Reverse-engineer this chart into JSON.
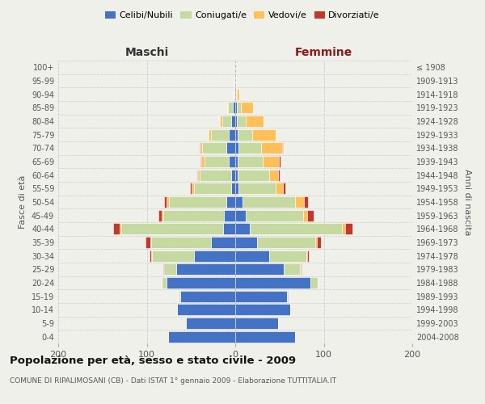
{
  "age_groups": [
    "0-4",
    "5-9",
    "10-14",
    "15-19",
    "20-24",
    "25-29",
    "30-34",
    "35-39",
    "40-44",
    "45-49",
    "50-54",
    "55-59",
    "60-64",
    "65-69",
    "70-74",
    "75-79",
    "80-84",
    "85-89",
    "90-94",
    "95-99",
    "100+"
  ],
  "birth_years": [
    "2004-2008",
    "1999-2003",
    "1994-1998",
    "1989-1993",
    "1984-1988",
    "1979-1983",
    "1974-1978",
    "1969-1973",
    "1964-1968",
    "1959-1963",
    "1954-1958",
    "1949-1953",
    "1944-1948",
    "1939-1943",
    "1934-1938",
    "1929-1933",
    "1924-1928",
    "1919-1923",
    "1914-1918",
    "1909-1913",
    "≤ 1908"
  ],
  "maschi": {
    "celibe": [
      76,
      56,
      66,
      62,
      78,
      67,
      47,
      27,
      14,
      13,
      10,
      5,
      5,
      7,
      10,
      7,
      5,
      3,
      1,
      1,
      0
    ],
    "coniugato": [
      0,
      0,
      0,
      2,
      5,
      13,
      47,
      68,
      115,
      68,
      65,
      42,
      35,
      28,
      27,
      20,
      10,
      5,
      1,
      0,
      0
    ],
    "vedovo": [
      0,
      0,
      0,
      0,
      0,
      0,
      1,
      1,
      2,
      2,
      3,
      2,
      2,
      3,
      2,
      3,
      2,
      1,
      0,
      0,
      0
    ],
    "divorziato": [
      0,
      0,
      0,
      0,
      0,
      1,
      2,
      5,
      7,
      4,
      2,
      2,
      1,
      1,
      1,
      0,
      0,
      0,
      0,
      0,
      0
    ]
  },
  "femmine": {
    "celibe": [
      68,
      48,
      62,
      58,
      85,
      55,
      38,
      25,
      16,
      12,
      8,
      4,
      3,
      3,
      4,
      3,
      2,
      2,
      1,
      0,
      0
    ],
    "coniugata": [
      0,
      0,
      0,
      2,
      8,
      18,
      42,
      65,
      105,
      65,
      60,
      42,
      35,
      28,
      25,
      16,
      10,
      4,
      1,
      0,
      0
    ],
    "vedova": [
      0,
      0,
      0,
      0,
      0,
      1,
      1,
      2,
      3,
      4,
      10,
      8,
      10,
      18,
      24,
      27,
      20,
      14,
      3,
      1,
      0
    ],
    "divorziata": [
      0,
      0,
      0,
      0,
      0,
      1,
      2,
      5,
      8,
      8,
      4,
      3,
      2,
      2,
      1,
      0,
      0,
      0,
      0,
      0,
      0
    ]
  },
  "colors": {
    "celibe": "#4472c4",
    "coniugato": "#c5d9a0",
    "vedovo": "#ffc05a",
    "divorziato": "#c0392b"
  },
  "xlim": 200,
  "title": "Popolazione per età, sesso e stato civile - 2009",
  "subtitle": "COMUNE DI RIPALIMOSANI (CB) - Dati ISTAT 1° gennaio 2009 - Elaborazione TUTTITALIA.IT",
  "xlabel_left": "Maschi",
  "xlabel_right": "Femmine",
  "ylabel_left": "Fasce di età",
  "ylabel_right": "Anni di nascita",
  "bg_color": "#f0f0eb",
  "grid_color": "#cccccc"
}
